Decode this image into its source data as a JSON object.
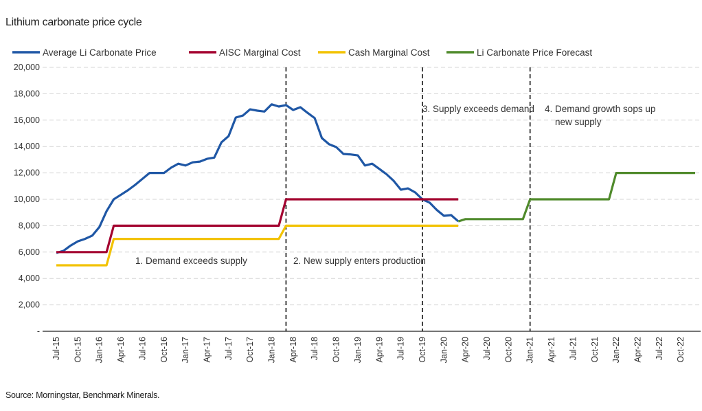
{
  "chart_data": {
    "type": "line",
    "title": "Lithium carbonate price cycle",
    "source": "Source: Morningstar, Benchmark Minerals.",
    "xlabel": "",
    "ylabel": "",
    "ylim": [
      0,
      20000
    ],
    "yticks": [
      0,
      2000,
      4000,
      6000,
      8000,
      10000,
      12000,
      14000,
      16000,
      18000,
      20000
    ],
    "ytick_labels": [
      "-",
      "2,000",
      "4,000",
      "6,000",
      "8,000",
      "10,000",
      "12,000",
      "14,000",
      "16,000",
      "18,000",
      "20,000"
    ],
    "grid": "horizontal dashed",
    "legend": "top",
    "x": [
      "Jul-15",
      "Aug-15",
      "Sep-15",
      "Oct-15",
      "Nov-15",
      "Dec-15",
      "Jan-16",
      "Feb-16",
      "Mar-16",
      "Apr-16",
      "May-16",
      "Jun-16",
      "Jul-16",
      "Aug-16",
      "Sep-16",
      "Oct-16",
      "Nov-16",
      "Dec-16",
      "Jan-17",
      "Feb-17",
      "Mar-17",
      "Apr-17",
      "May-17",
      "Jun-17",
      "Jul-17",
      "Aug-17",
      "Sep-17",
      "Oct-17",
      "Nov-17",
      "Dec-17",
      "Jan-18",
      "Feb-18",
      "Mar-18",
      "Apr-18",
      "May-18",
      "Jun-18",
      "Jul-18",
      "Aug-18",
      "Sep-18",
      "Oct-18",
      "Nov-18",
      "Dec-18",
      "Jan-19",
      "Feb-19",
      "Mar-19",
      "Apr-19",
      "May-19",
      "Jun-19",
      "Jul-19",
      "Aug-19",
      "Sep-19",
      "Oct-19",
      "Nov-19",
      "Dec-19",
      "Jan-20",
      "Feb-20",
      "Mar-20",
      "Apr-20",
      "May-20",
      "Jun-20",
      "Jul-20",
      "Aug-20",
      "Sep-20",
      "Oct-20",
      "Nov-20",
      "Dec-20",
      "Jan-21",
      "Feb-21",
      "Mar-21",
      "Apr-21",
      "May-21",
      "Jun-21",
      "Jul-21",
      "Aug-21",
      "Sep-21",
      "Oct-21",
      "Nov-21",
      "Dec-21",
      "Jan-22",
      "Feb-22",
      "Mar-22",
      "Apr-22",
      "May-22",
      "Jun-22",
      "Jul-22",
      "Aug-22",
      "Sep-22",
      "Oct-22",
      "Nov-22",
      "Dec-22"
    ],
    "xtick_labels": [
      "Jul-15",
      "Oct-15",
      "Jan-16",
      "Apr-16",
      "Jul-16",
      "Oct-16",
      "Jan-17",
      "Apr-17",
      "Jul-17",
      "Oct-17",
      "Jan-18",
      "Apr-18",
      "Jul-18",
      "Oct-18",
      "Jan-19",
      "Apr-19",
      "Jul-19",
      "Oct-19",
      "Jan-20",
      "Apr-20",
      "Jul-20",
      "Oct-20",
      "Jan-21",
      "Apr-21",
      "Jul-21",
      "Oct-21",
      "Jan-22",
      "Apr-22",
      "Jul-22",
      "Oct-22"
    ],
    "series": [
      {
        "name": "Average Li Carbonate Price",
        "color": "#1f57a5",
        "values": [
          5940,
          6100,
          6500,
          6820,
          7000,
          7250,
          7900,
          9100,
          10000,
          10350,
          10700,
          11100,
          11550,
          12000,
          12000,
          12000,
          12400,
          12700,
          12560,
          12800,
          12860,
          13070,
          13160,
          14320,
          14790,
          16200,
          16350,
          16820,
          16720,
          16650,
          17200,
          17030,
          17140,
          16770,
          16980,
          16550,
          16150,
          14640,
          14170,
          13960,
          13440,
          13400,
          13330,
          12560,
          12700,
          12300,
          11900,
          11400,
          10730,
          10830,
          10520,
          10000,
          9750,
          9200,
          8750,
          8800,
          8330,
          null,
          null,
          null,
          null,
          null,
          null,
          null,
          null,
          null,
          null,
          null,
          null,
          null,
          null,
          null,
          null,
          null,
          null,
          null,
          null,
          null,
          null,
          null,
          null,
          null,
          null,
          null,
          null,
          null,
          null,
          null,
          null,
          null
        ]
      },
      {
        "name": "AISC Marginal Cost",
        "color": "#a3002f",
        "values": [
          6000,
          6000,
          6000,
          6000,
          6000,
          6000,
          6000,
          6000,
          8000,
          8000,
          8000,
          8000,
          8000,
          8000,
          8000,
          8000,
          8000,
          8000,
          8000,
          8000,
          8000,
          8000,
          8000,
          8000,
          8000,
          8000,
          8000,
          8000,
          8000,
          8000,
          8000,
          8000,
          10000,
          10000,
          10000,
          10000,
          10000,
          10000,
          10000,
          10000,
          10000,
          10000,
          10000,
          10000,
          10000,
          10000,
          10000,
          10000,
          10000,
          10000,
          10000,
          10000,
          10000,
          10000,
          10000,
          10000,
          10000,
          null,
          null,
          null,
          null,
          null,
          null,
          null,
          null,
          null,
          null,
          null,
          null,
          null,
          null,
          null,
          null,
          null,
          null,
          null,
          null,
          null,
          null,
          null,
          null,
          null,
          null,
          null,
          null,
          null,
          null,
          null,
          null,
          null
        ]
      },
      {
        "name": "Cash Marginal Cost",
        "color": "#f2c200",
        "values": [
          5000,
          5000,
          5000,
          5000,
          5000,
          5000,
          5000,
          5000,
          7000,
          7000,
          7000,
          7000,
          7000,
          7000,
          7000,
          7000,
          7000,
          7000,
          7000,
          7000,
          7000,
          7000,
          7000,
          7000,
          7000,
          7000,
          7000,
          7000,
          7000,
          7000,
          7000,
          7000,
          8000,
          8000,
          8000,
          8000,
          8000,
          8000,
          8000,
          8000,
          8000,
          8000,
          8000,
          8000,
          8000,
          8000,
          8000,
          8000,
          8000,
          8000,
          8000,
          8000,
          8000,
          8000,
          8000,
          8000,
          8000,
          null,
          null,
          null,
          null,
          null,
          null,
          null,
          null,
          null,
          null,
          null,
          null,
          null,
          null,
          null,
          null,
          null,
          null,
          null,
          null,
          null,
          null,
          null,
          null,
          null,
          null,
          null,
          null,
          null,
          null,
          null,
          null,
          null
        ]
      },
      {
        "name": "Li Carbonate Price Forecast",
        "color": "#4f8a2b",
        "values": [
          null,
          null,
          null,
          null,
          null,
          null,
          null,
          null,
          null,
          null,
          null,
          null,
          null,
          null,
          null,
          null,
          null,
          null,
          null,
          null,
          null,
          null,
          null,
          null,
          null,
          null,
          null,
          null,
          null,
          null,
          null,
          null,
          null,
          null,
          null,
          null,
          null,
          null,
          null,
          null,
          null,
          null,
          null,
          null,
          null,
          null,
          null,
          null,
          null,
          null,
          null,
          null,
          null,
          null,
          null,
          null,
          8330,
          8500,
          8500,
          8500,
          8500,
          8500,
          8500,
          8500,
          8500,
          8500,
          10000,
          10000,
          10000,
          10000,
          10000,
          10000,
          10000,
          10000,
          10000,
          10000,
          10000,
          10000,
          12000,
          12000,
          12000,
          12000,
          12000,
          12000,
          12000,
          12000,
          12000,
          12000,
          12000,
          12000
        ]
      }
    ],
    "vertical_markers": [
      "Mar-18",
      "Oct-19",
      "Jan-21"
    ],
    "annotations": [
      {
        "text": "1. Demand exceeds supply",
        "at": "Dec-16"
      },
      {
        "text": "2. New supply enters production",
        "at": "Apr-18"
      },
      {
        "text": "3. Supply exceeds demand",
        "at": "Oct-19"
      },
      {
        "text": "4. Demand growth sops up",
        "text2": "new supply",
        "at": "Mar-21"
      }
    ]
  }
}
